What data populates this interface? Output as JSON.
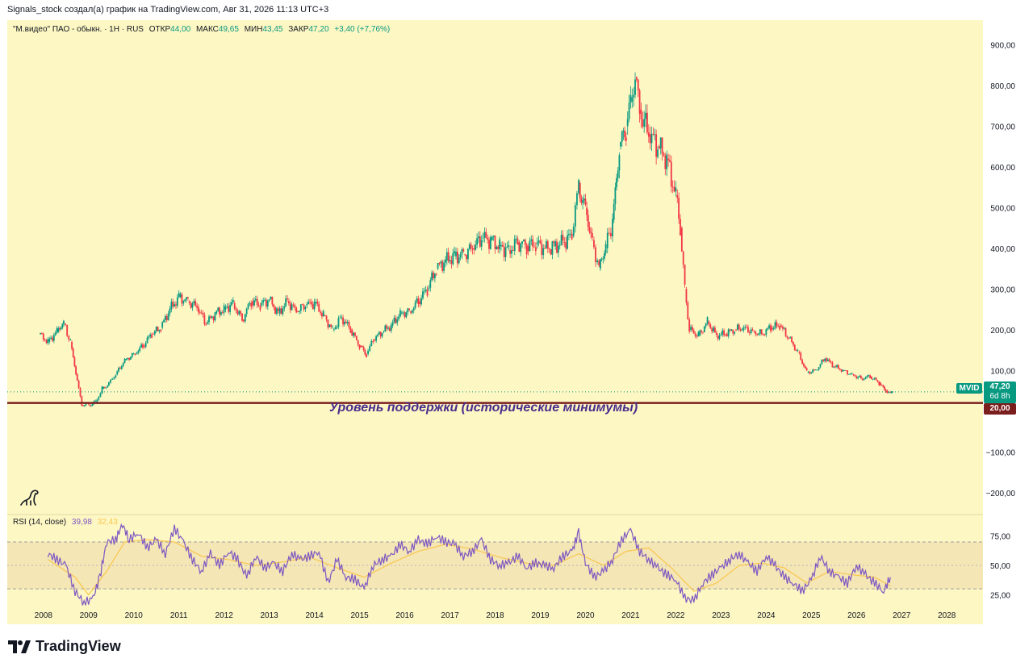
{
  "header": {
    "author_line": "Signals_stock создал(а) график на TradingView.com, Авг 31, 2026 11:13 UTC+3"
  },
  "legend": {
    "symbol": "\"М.видео\" ПАО - обыкн. · 1Н · RUS",
    "open_label": "ОТКР",
    "open_value": "44,00",
    "high_label": "МАКС",
    "high_value": "49,65",
    "low_label": "МИН",
    "low_value": "43,45",
    "close_label": "ЗАКР",
    "close_value": "47,20",
    "change": "+3,40 (+7,76%)"
  },
  "rsi_legend": {
    "title": "RSI (14, close)",
    "rsi_value": "39,98",
    "ma_value": "32,43"
  },
  "annotation": {
    "support_text": "Уровень поддержки (исторические минимумы)"
  },
  "price_tag": {
    "ticker": "MVID",
    "price": "47,20",
    "countdown": "6d 8h",
    "support_price": "20,00"
  },
  "brand": "TradingView",
  "colors": {
    "background": "#fdf7c3",
    "up": "#089981",
    "down": "#f23645",
    "support_line": "#7b1e1e",
    "rsi_line": "#7e57c2",
    "rsi_ma": "#f9c74f"
  },
  "chart_data": [
    {
      "type": "candlestick",
      "title": "\"М.видео\" ПАО - обыкн. · 1Н · RUS",
      "x_unit": "year",
      "y_ticks": [
        "900,00",
        "800,00",
        "700,00",
        "600,00",
        "500,00",
        "400,00",
        "300,00",
        "200,00",
        "100,00",
        "−100,00",
        "−200,00"
      ],
      "y_tick_values": [
        900,
        800,
        700,
        600,
        500,
        400,
        300,
        200,
        100,
        -100,
        -200
      ],
      "x_ticks": [
        "2008",
        "2009",
        "2010",
        "2011",
        "2012",
        "2013",
        "2014",
        "2015",
        "2016",
        "2017",
        "2018",
        "2019",
        "2020",
        "2021",
        "2022",
        "2023",
        "2024",
        "2025",
        "2026",
        "2027",
        "2028"
      ],
      "x_tick_values": [
        2008,
        2009,
        2010,
        2011,
        2012,
        2013,
        2014,
        2015,
        2016,
        2017,
        2018,
        2019,
        2020,
        2021,
        2022,
        2023,
        2024,
        2025,
        2026,
        2027,
        2028
      ],
      "ylim": [
        -250,
        960
      ],
      "xlim": [
        2007.2,
        2028.8
      ],
      "series": [
        {
          "points": [
            [
              2007.9,
              190
            ],
            [
              2008.1,
              170
            ],
            [
              2008.3,
              195
            ],
            [
              2008.45,
              215
            ],
            [
              2008.6,
              170
            ],
            [
              2008.75,
              75
            ],
            [
              2008.85,
              15
            ],
            [
              2009.0,
              15
            ],
            [
              2009.15,
              20
            ],
            [
              2009.3,
              55
            ],
            [
              2009.45,
              70
            ],
            [
              2009.6,
              90
            ],
            [
              2009.8,
              125
            ],
            [
              2010.0,
              140
            ],
            [
              2010.2,
              160
            ],
            [
              2010.4,
              190
            ],
            [
              2010.6,
              205
            ],
            [
              2010.8,
              250
            ],
            [
              2011.0,
              280
            ],
            [
              2011.2,
              270
            ],
            [
              2011.4,
              255
            ],
            [
              2011.6,
              215
            ],
            [
              2011.8,
              240
            ],
            [
              2012.0,
              250
            ],
            [
              2012.2,
              265
            ],
            [
              2012.4,
              225
            ],
            [
              2012.6,
              270
            ],
            [
              2012.8,
              260
            ],
            [
              2013.0,
              275
            ],
            [
              2013.2,
              240
            ],
            [
              2013.4,
              270
            ],
            [
              2013.6,
              245
            ],
            [
              2013.8,
              260
            ],
            [
              2014.0,
              265
            ],
            [
              2014.2,
              235
            ],
            [
              2014.4,
              200
            ],
            [
              2014.6,
              230
            ],
            [
              2014.8,
              200
            ],
            [
              2015.0,
              160
            ],
            [
              2015.15,
              140
            ],
            [
              2015.3,
              175
            ],
            [
              2015.5,
              195
            ],
            [
              2015.7,
              210
            ],
            [
              2015.9,
              240
            ],
            [
              2016.1,
              245
            ],
            [
              2016.3,
              270
            ],
            [
              2016.5,
              300
            ],
            [
              2016.7,
              350
            ],
            [
              2016.9,
              370
            ],
            [
              2017.1,
              380
            ],
            [
              2017.3,
              385
            ],
            [
              2017.5,
              400
            ],
            [
              2017.7,
              425
            ],
            [
              2017.9,
              420
            ],
            [
              2018.1,
              405
            ],
            [
              2018.3,
              395
            ],
            [
              2018.5,
              415
            ],
            [
              2018.7,
              405
            ],
            [
              2018.9,
              410
            ],
            [
              2019.1,
              400
            ],
            [
              2019.3,
              405
            ],
            [
              2019.5,
              415
            ],
            [
              2019.7,
              430
            ],
            [
              2019.85,
              560
            ],
            [
              2020.0,
              500
            ],
            [
              2020.15,
              420
            ],
            [
              2020.3,
              350
            ],
            [
              2020.45,
              400
            ],
            [
              2020.6,
              470
            ],
            [
              2020.75,
              650
            ],
            [
              2020.9,
              700
            ],
            [
              2021.0,
              760
            ],
            [
              2021.1,
              820
            ],
            [
              2021.2,
              740
            ],
            [
              2021.4,
              680
            ],
            [
              2021.6,
              650
            ],
            [
              2021.8,
              620
            ],
            [
              2022.0,
              530
            ],
            [
              2022.1,
              450
            ],
            [
              2022.2,
              300
            ],
            [
              2022.3,
              200
            ],
            [
              2022.5,
              185
            ],
            [
              2022.7,
              220
            ],
            [
              2022.9,
              185
            ],
            [
              2023.1,
              190
            ],
            [
              2023.3,
              200
            ],
            [
              2023.5,
              205
            ],
            [
              2023.7,
              195
            ],
            [
              2023.9,
              190
            ],
            [
              2024.1,
              205
            ],
            [
              2024.3,
              210
            ],
            [
              2024.5,
              180
            ],
            [
              2024.7,
              145
            ],
            [
              2024.9,
              95
            ],
            [
              2025.1,
              100
            ],
            [
              2025.3,
              130
            ],
            [
              2025.5,
              110
            ],
            [
              2025.7,
              100
            ],
            [
              2025.9,
              90
            ],
            [
              2026.1,
              80
            ],
            [
              2026.3,
              85
            ],
            [
              2026.5,
              70
            ],
            [
              2026.65,
              50
            ],
            [
              2026.75,
              44
            ],
            [
              2026.8,
              47.2
            ]
          ]
        }
      ],
      "support_level": 20,
      "current_price": 47.2
    },
    {
      "type": "line",
      "title": "RSI (14, close)",
      "y_ticks": [
        "75,00",
        "50,00",
        "25,00"
      ],
      "y_tick_values": [
        75,
        50,
        25
      ],
      "ylim": [
        15,
        92
      ],
      "band": [
        30,
        70
      ],
      "series": [
        {
          "name": "RSI",
          "points": [
            [
              2008.1,
              60
            ],
            [
              2008.3,
              55
            ],
            [
              2008.5,
              50
            ],
            [
              2008.7,
              28
            ],
            [
              2008.9,
              18
            ],
            [
              2009.1,
              22
            ],
            [
              2009.25,
              40
            ],
            [
              2009.4,
              70
            ],
            [
              2009.6,
              72
            ],
            [
              2009.75,
              85
            ],
            [
              2009.9,
              72
            ],
            [
              2010.1,
              78
            ],
            [
              2010.3,
              65
            ],
            [
              2010.5,
              72
            ],
            [
              2010.7,
              60
            ],
            [
              2010.9,
              82
            ],
            [
              2011.1,
              70
            ],
            [
              2011.3,
              55
            ],
            [
              2011.5,
              45
            ],
            [
              2011.7,
              60
            ],
            [
              2011.9,
              50
            ],
            [
              2012.1,
              62
            ],
            [
              2012.3,
              55
            ],
            [
              2012.5,
              40
            ],
            [
              2012.7,
              58
            ],
            [
              2012.9,
              48
            ],
            [
              2013.1,
              52
            ],
            [
              2013.3,
              45
            ],
            [
              2013.5,
              60
            ],
            [
              2013.7,
              55
            ],
            [
              2013.9,
              58
            ],
            [
              2014.1,
              62
            ],
            [
              2014.3,
              35
            ],
            [
              2014.5,
              55
            ],
            [
              2014.7,
              40
            ],
            [
              2014.9,
              38
            ],
            [
              2015.1,
              30
            ],
            [
              2015.3,
              50
            ],
            [
              2015.5,
              55
            ],
            [
              2015.7,
              58
            ],
            [
              2015.9,
              68
            ],
            [
              2016.1,
              62
            ],
            [
              2016.3,
              72
            ],
            [
              2016.5,
              68
            ],
            [
              2016.7,
              75
            ],
            [
              2016.9,
              70
            ],
            [
              2017.1,
              68
            ],
            [
              2017.3,
              58
            ],
            [
              2017.5,
              62
            ],
            [
              2017.7,
              72
            ],
            [
              2017.9,
              55
            ],
            [
              2018.1,
              50
            ],
            [
              2018.3,
              52
            ],
            [
              2018.5,
              58
            ],
            [
              2018.7,
              48
            ],
            [
              2018.9,
              52
            ],
            [
              2019.1,
              50
            ],
            [
              2019.3,
              48
            ],
            [
              2019.5,
              58
            ],
            [
              2019.7,
              62
            ],
            [
              2019.85,
              78
            ],
            [
              2020.0,
              52
            ],
            [
              2020.2,
              40
            ],
            [
              2020.4,
              45
            ],
            [
              2020.6,
              55
            ],
            [
              2020.8,
              72
            ],
            [
              2021.0,
              80
            ],
            [
              2021.2,
              62
            ],
            [
              2021.4,
              55
            ],
            [
              2021.6,
              48
            ],
            [
              2021.8,
              42
            ],
            [
              2022.0,
              38
            ],
            [
              2022.2,
              22
            ],
            [
              2022.4,
              20
            ],
            [
              2022.6,
              35
            ],
            [
              2022.8,
              42
            ],
            [
              2023.0,
              48
            ],
            [
              2023.2,
              55
            ],
            [
              2023.4,
              60
            ],
            [
              2023.6,
              52
            ],
            [
              2023.8,
              45
            ],
            [
              2024.0,
              58
            ],
            [
              2024.2,
              50
            ],
            [
              2024.4,
              40
            ],
            [
              2024.6,
              35
            ],
            [
              2024.8,
              28
            ],
            [
              2025.0,
              38
            ],
            [
              2025.2,
              58
            ],
            [
              2025.4,
              45
            ],
            [
              2025.6,
              40
            ],
            [
              2025.8,
              35
            ],
            [
              2026.0,
              50
            ],
            [
              2026.2,
              42
            ],
            [
              2026.4,
              35
            ],
            [
              2026.6,
              28
            ],
            [
              2026.75,
              39.98
            ]
          ]
        },
        {
          "name": "MA",
          "points": [
            [
              2008.1,
              55
            ],
            [
              2008.7,
              40
            ],
            [
              2009.0,
              25
            ],
            [
              2009.4,
              45
            ],
            [
              2009.8,
              70
            ],
            [
              2010.3,
              72
            ],
            [
              2010.9,
              70
            ],
            [
              2011.5,
              58
            ],
            [
              2012.1,
              55
            ],
            [
              2012.7,
              50
            ],
            [
              2013.3,
              53
            ],
            [
              2013.9,
              57
            ],
            [
              2014.5,
              48
            ],
            [
              2015.1,
              40
            ],
            [
              2015.7,
              52
            ],
            [
              2016.3,
              62
            ],
            [
              2016.9,
              68
            ],
            [
              2017.5,
              64
            ],
            [
              2018.1,
              57
            ],
            [
              2018.7,
              52
            ],
            [
              2019.3,
              50
            ],
            [
              2019.85,
              60
            ],
            [
              2020.4,
              50
            ],
            [
              2020.9,
              62
            ],
            [
              2021.4,
              65
            ],
            [
              2021.9,
              48
            ],
            [
              2022.4,
              28
            ],
            [
              2022.9,
              35
            ],
            [
              2023.4,
              50
            ],
            [
              2023.9,
              52
            ],
            [
              2024.4,
              48
            ],
            [
              2024.9,
              35
            ],
            [
              2025.4,
              45
            ],
            [
              2025.9,
              42
            ],
            [
              2026.4,
              40
            ],
            [
              2026.75,
              32.43
            ]
          ]
        }
      ]
    }
  ]
}
